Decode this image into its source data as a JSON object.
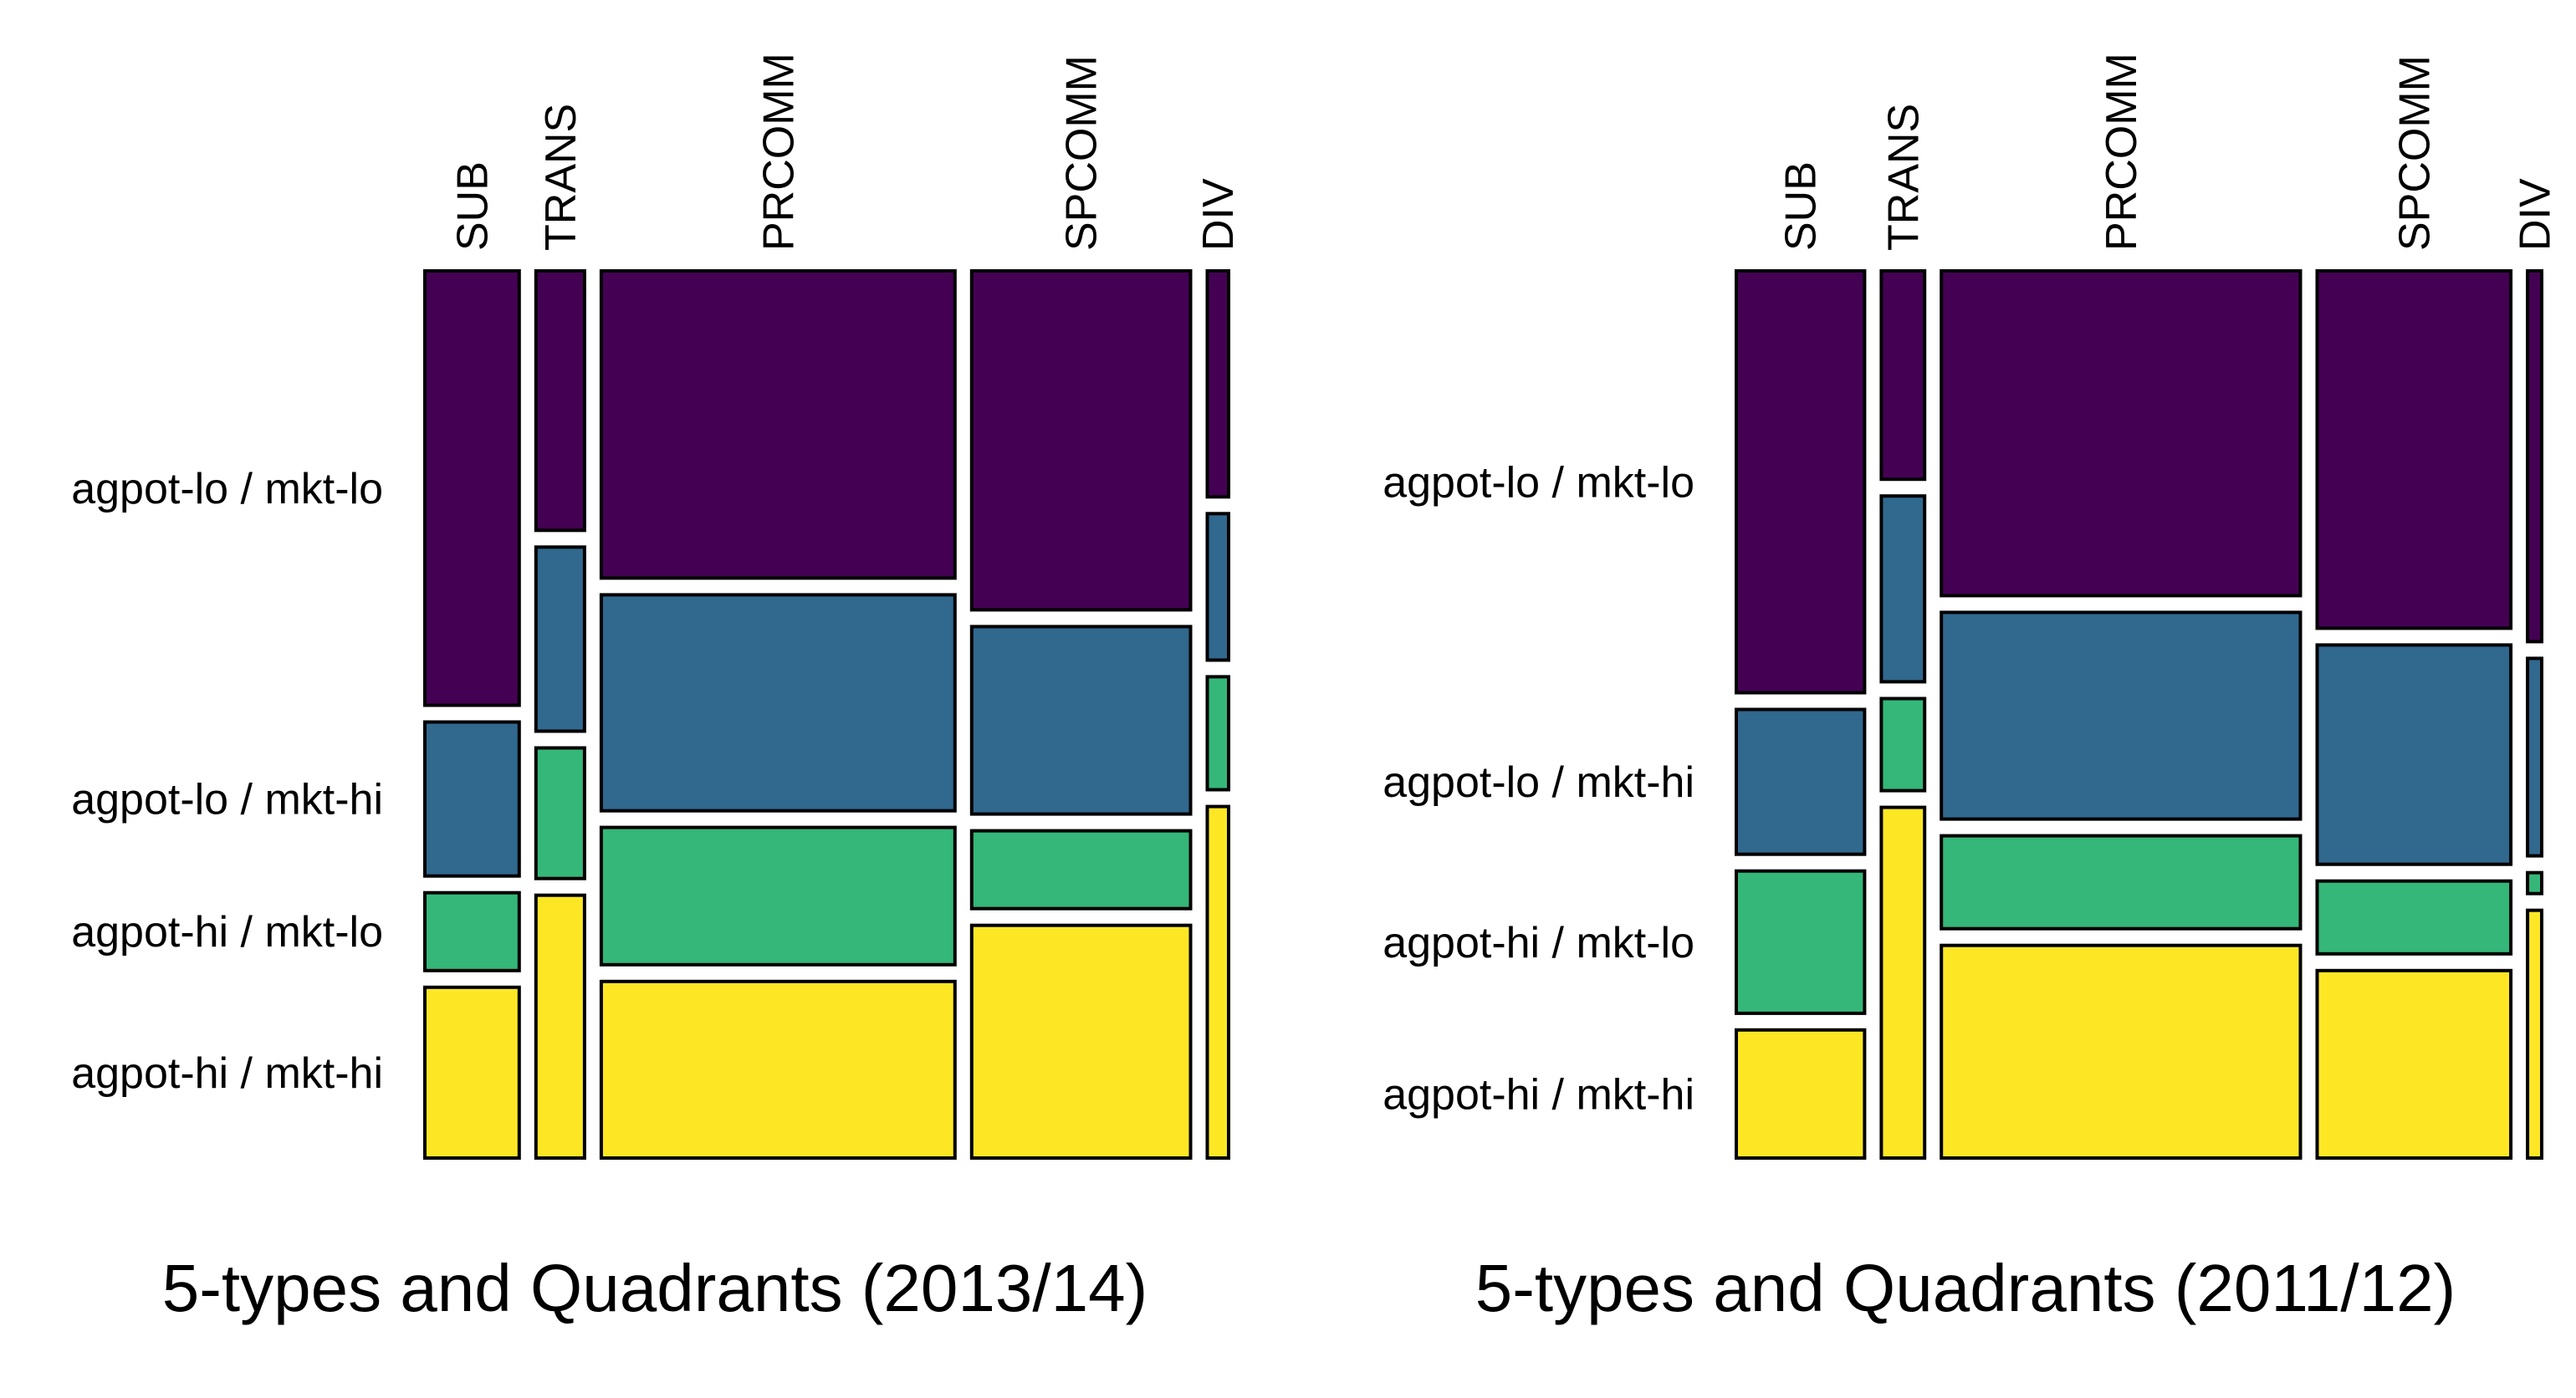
{
  "chart_data": [
    {
      "type": "mosaic",
      "title": "5-types and Quadrants (2013/14)",
      "columns": [
        {
          "label": "SUB",
          "width_share": 0.128,
          "segments": [
            0.519,
            0.184,
            0.093,
            0.204
          ]
        },
        {
          "label": "TRANS",
          "width_share": 0.066,
          "segments": [
            0.31,
            0.22,
            0.156,
            0.314
          ]
        },
        {
          "label": "PRCOMM",
          "width_share": 0.48,
          "segments": [
            0.367,
            0.258,
            0.164,
            0.211
          ]
        },
        {
          "label": "SPCOMM",
          "width_share": 0.297,
          "segments": [
            0.405,
            0.224,
            0.093,
            0.278
          ]
        },
        {
          "label": "DIV",
          "width_share": 0.029,
          "segments": [
            0.27,
            0.175,
            0.135,
            0.42
          ]
        }
      ],
      "rows": [
        "agpot-lo / mkt-lo",
        "agpot-lo / mkt-hi",
        "agpot-hi / mkt-lo",
        "agpot-hi / mkt-hi"
      ],
      "colors": [
        "#440154",
        "#31688e",
        "#35b779",
        "#fde725"
      ]
    },
    {
      "type": "mosaic",
      "title": "5-types and Quadrants (2011/12)",
      "columns": [
        {
          "label": "SUB",
          "width_share": 0.163,
          "segments": [
            0.504,
            0.173,
            0.17,
            0.153
          ]
        },
        {
          "label": "TRANS",
          "width_share": 0.055,
          "segments": [
            0.249,
            0.222,
            0.11,
            0.419
          ]
        },
        {
          "label": "PRCOMM",
          "width_share": 0.456,
          "segments": [
            0.388,
            0.247,
            0.111,
            0.254
          ]
        },
        {
          "label": "SPCOMM",
          "width_share": 0.246,
          "segments": [
            0.427,
            0.262,
            0.087,
            0.224
          ]
        },
        {
          "label": "DIV",
          "width_share": 0.018,
          "segments": [
            0.443,
            0.236,
            0.025,
            0.296
          ]
        }
      ],
      "rows": [
        "agpot-lo / mkt-lo",
        "agpot-lo / mkt-hi",
        "agpot-hi / mkt-lo",
        "agpot-hi / mkt-hi"
      ],
      "colors": [
        "#440154",
        "#31688e",
        "#35b779",
        "#fde725"
      ]
    }
  ]
}
